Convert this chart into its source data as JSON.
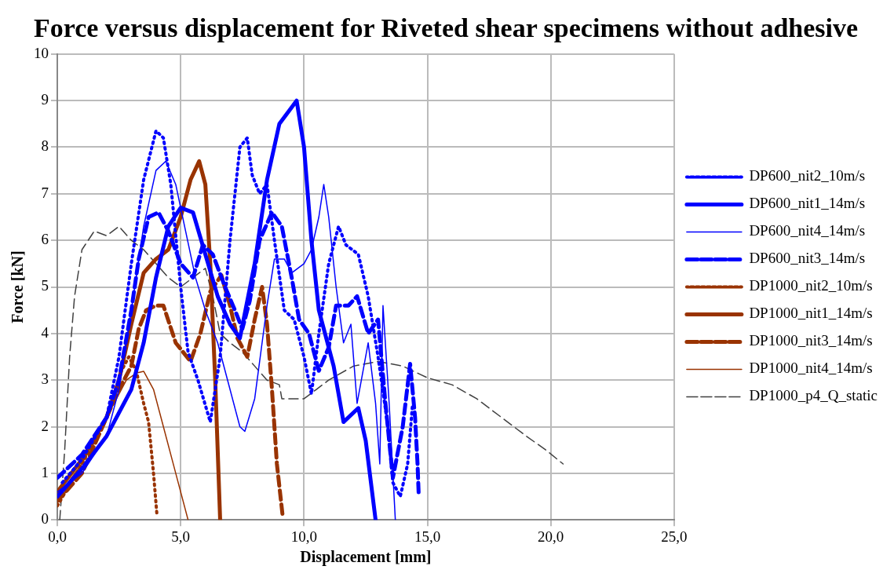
{
  "chart_data": {
    "type": "line",
    "title": "Force versus displacement for Riveted shear specimens without adhesive",
    "xlabel": "Displacement [mm]",
    "ylabel": "Force [kN]",
    "xlim": [
      0,
      25
    ],
    "xticks": [
      {
        "value": 0,
        "label": "0,0"
      },
      {
        "value": 5,
        "label": "5,0"
      },
      {
        "value": 10,
        "label": "10,0"
      },
      {
        "value": 15,
        "label": "15,0"
      },
      {
        "value": 20,
        "label": "20,0"
      },
      {
        "value": 25,
        "label": "25,0"
      }
    ],
    "ylim": [
      0,
      10
    ],
    "yticks": [
      0,
      1,
      2,
      3,
      4,
      5,
      6,
      7,
      8,
      9,
      10
    ],
    "grid": true,
    "legend": "right",
    "marker": "none",
    "series": [
      {
        "name": "DP600_nit2_10m/s",
        "color": "#0000ff",
        "line_style": "dotted",
        "x": [
          0.2,
          1,
          2,
          2.5,
          3,
          3.5,
          4,
          4.3,
          4.6,
          5,
          5.3,
          5.7,
          6.2,
          6.6,
          7,
          7.4,
          7.7,
          7.9,
          8.2,
          8.5,
          8.8,
          9.2,
          9.6,
          10,
          10.3,
          10.6,
          11,
          11.4,
          11.7,
          12.2,
          12.6,
          13,
          13.4,
          13.6,
          13.9,
          14.2,
          14.4
        ],
        "values": [
          0.8,
          1.3,
          2.2,
          3.5,
          5.5,
          7.3,
          8.35,
          8.2,
          7.2,
          5,
          3.6,
          3,
          2.1,
          3.5,
          6,
          8,
          8.2,
          7.4,
          7,
          7.2,
          6,
          4.5,
          4.3,
          3.5,
          2.7,
          4,
          5.5,
          6.3,
          5.9,
          5.7,
          4.8,
          3.5,
          2,
          0.8,
          0.5,
          1.2,
          2.5
        ]
      },
      {
        "name": "DP600_nit1_14m/s",
        "color": "#0000ff",
        "line_style": "solid",
        "x": [
          0,
          1,
          2,
          3,
          3.5,
          4,
          4.5,
          5,
          5.5,
          6,
          6.5,
          7,
          7.4,
          8,
          8.5,
          9,
          9.7,
          10,
          10.3,
          10.6,
          11.2,
          11.6,
          12.2,
          12.5,
          12.9
        ],
        "values": [
          0.5,
          1.1,
          1.8,
          2.8,
          3.8,
          5.2,
          6.3,
          6.7,
          6.6,
          5.7,
          4.8,
          4.2,
          3.9,
          5.5,
          7.3,
          8.5,
          9.0,
          8.0,
          6,
          4.5,
          3.3,
          2.1,
          2.4,
          1.7,
          0
        ]
      },
      {
        "name": "DP600_nit4_14m/s",
        "color": "#0000ff",
        "line_style": "solid",
        "x": [
          0,
          1,
          2,
          2.5,
          3,
          3.5,
          4,
          4.4,
          4.8,
          5.2,
          5.6,
          6,
          6.5,
          7,
          7.4,
          7.6,
          8,
          8.5,
          8.8,
          9.2,
          9.5,
          10,
          10.3,
          10.6,
          10.8,
          11,
          11.3,
          11.6,
          11.9,
          12.15,
          12.6,
          12.9,
          13.07,
          13.2,
          13.45,
          13.7
        ],
        "values": [
          0.6,
          1,
          1.8,
          2.8,
          4.5,
          6.3,
          7.5,
          7.7,
          7.2,
          6.2,
          5.2,
          4.5,
          3.8,
          2.8,
          2,
          1.9,
          2.6,
          4.6,
          5.6,
          5.6,
          5.3,
          5.5,
          5.8,
          6.5,
          7.2,
          6.5,
          5,
          3.8,
          4.2,
          2.5,
          3.8,
          2.5,
          1.2,
          4.6,
          2.5,
          0
        ]
      },
      {
        "name": "DP600_nit3_14m/s",
        "color": "#0000ff",
        "line_style": "dashed",
        "x": [
          0,
          1,
          2,
          2.5,
          3,
          3.3,
          3.7,
          4.1,
          4.5,
          5,
          5.5,
          5.9,
          6.3,
          6.8,
          7.2,
          7.5,
          7.8,
          8.2,
          8.7,
          9.1,
          9.5,
          9.8,
          10.2,
          10.6,
          11,
          11.3,
          11.8,
          12.15,
          12.6,
          13,
          13.3,
          13.6,
          14,
          14.3,
          14.5,
          14.6,
          14.65
        ],
        "values": [
          0.9,
          1.4,
          2.2,
          3,
          4.5,
          5.6,
          6.5,
          6.6,
          6.2,
          5.5,
          5.2,
          5.9,
          5.7,
          5,
          4.5,
          4.1,
          4.7,
          6,
          6.6,
          6.3,
          5.2,
          4.3,
          4,
          3.2,
          3.7,
          4.6,
          4.6,
          4.8,
          4,
          4.3,
          2.5,
          0.9,
          2,
          3.35,
          2.2,
          1.2,
          0.5
        ]
      },
      {
        "name": "DP1000_nit2_10m/s",
        "color": "#993300",
        "line_style": "dotted",
        "x": [
          0,
          1,
          2,
          2.6,
          2.9,
          3.2,
          3.5,
          3.7,
          3.9,
          4.04
        ],
        "values": [
          0.3,
          1.2,
          2.2,
          3.2,
          3.5,
          3.2,
          2.5,
          2.1,
          1,
          0.1
        ]
      },
      {
        "name": "DP1000_nit1_14m/s",
        "color": "#993300",
        "line_style": "solid",
        "x": [
          0,
          1,
          2,
          2.5,
          3,
          3.5,
          4,
          4.5,
          5,
          5.4,
          5.75,
          6,
          6.2,
          6.4,
          6.6
        ],
        "values": [
          0.6,
          1.3,
          2.2,
          3,
          4.2,
          5.3,
          5.6,
          5.8,
          6.5,
          7.3,
          7.7,
          7.2,
          5.5,
          3,
          0
        ]
      },
      {
        "name": "DP1000_nit3_14m/s",
        "color": "#993300",
        "line_style": "dashed",
        "x": [
          0,
          1,
          2,
          2.5,
          3,
          3.3,
          3.6,
          4,
          4.3,
          4.8,
          5.4,
          5.8,
          6.2,
          6.65,
          7,
          7.3,
          7.7,
          8,
          8.3,
          8.5,
          8.7,
          8.9,
          9.13
        ],
        "values": [
          0.4,
          1,
          2.2,
          2.8,
          3.3,
          4.1,
          4.5,
          4.6,
          4.6,
          3.8,
          3.4,
          4,
          4.9,
          5.25,
          4.6,
          3.9,
          3.5,
          4.3,
          5,
          4.2,
          2.8,
          1.2,
          0.1
        ]
      },
      {
        "name": "DP1000_nit4_14m/s",
        "color": "#993300",
        "line_style": "solid",
        "x": [
          0,
          1,
          2,
          2.8,
          3.2,
          3.5,
          3.9,
          4.3,
          4.8,
          5.3
        ],
        "values": [
          0.5,
          1.2,
          2.2,
          3,
          3.15,
          3.19,
          2.8,
          2,
          1,
          0
        ]
      },
      {
        "name": "DP1000_p4_Q_static",
        "color": "#404040",
        "line_style": "dashed",
        "x": [
          0.1,
          0.3,
          0.5,
          0.7,
          1,
          1.5,
          2,
          2.5,
          3,
          3.5,
          4,
          4.5,
          5,
          5.5,
          6,
          6.3,
          6.6,
          7,
          7.5,
          8,
          8.5,
          9,
          9.1,
          10,
          10.5,
          11,
          12,
          13,
          14,
          15,
          16,
          17,
          18,
          19,
          19.8,
          20.5
        ],
        "values": [
          0,
          1.5,
          3.5,
          4.8,
          5.8,
          6.2,
          6.1,
          6.3,
          6,
          5.8,
          5.5,
          5.2,
          5,
          5.2,
          5.4,
          4.8,
          4,
          3.8,
          3.6,
          3.3,
          3,
          2.9,
          2.6,
          2.6,
          2.8,
          3,
          3.3,
          3.4,
          3.3,
          3.05,
          2.9,
          2.6,
          2.2,
          1.8,
          1.5,
          1.2
        ]
      }
    ]
  }
}
